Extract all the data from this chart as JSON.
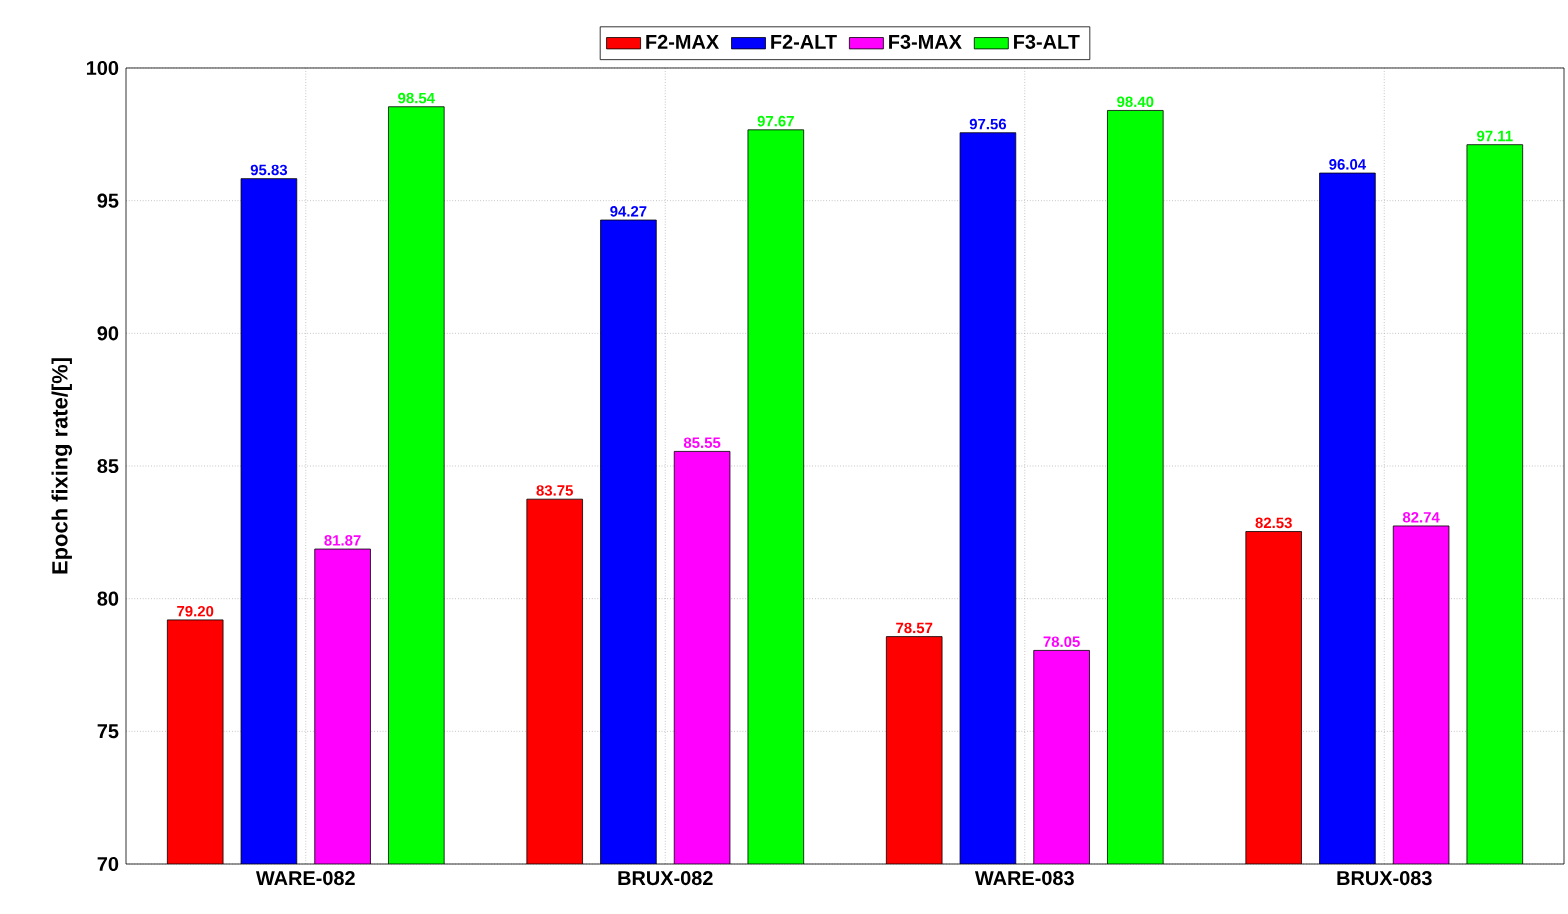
{
  "chart_data": {
    "type": "bar",
    "ylabel": "Epoch fixing rate/[%]",
    "categories": [
      "WARE-082",
      "BRUX-082",
      "WARE-083",
      "BRUX-083"
    ],
    "series": [
      {
        "name": "F2-MAX",
        "color": "#ff0000",
        "values": [
          79.2,
          83.75,
          78.57,
          82.53
        ],
        "value_labels": [
          "79.20",
          "83.75",
          "78.57",
          "82.53"
        ]
      },
      {
        "name": "F2-ALT",
        "color": "#0000ff",
        "values": [
          95.83,
          94.27,
          97.56,
          96.04
        ],
        "value_labels": [
          "95.83",
          "94.27",
          "97.56",
          "96.04"
        ]
      },
      {
        "name": "F3-MAX",
        "color": "#ff00ff",
        "values": [
          81.87,
          85.55,
          78.05,
          82.74
        ],
        "value_labels": [
          "81.87",
          "85.55",
          "78.05",
          "82.74"
        ]
      },
      {
        "name": "F3-ALT",
        "color": "#00ff00",
        "values": [
          98.54,
          97.67,
          98.4,
          97.11
        ],
        "value_labels": [
          "98.54",
          "97.67",
          "98.40",
          "97.11"
        ]
      }
    ],
    "ylim": [
      70,
      100
    ],
    "yticks": [
      70,
      75,
      80,
      85,
      90,
      95,
      100
    ],
    "grid": true,
    "legend": "top"
  }
}
